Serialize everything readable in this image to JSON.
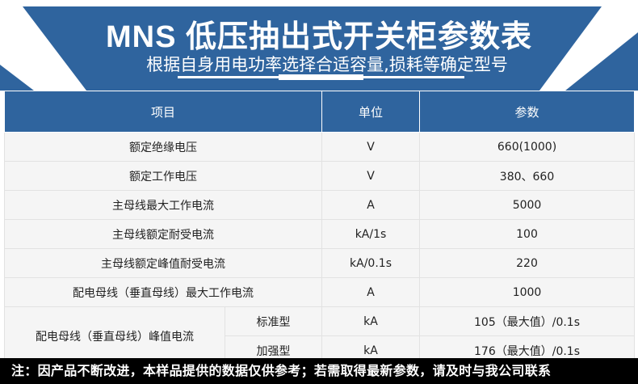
{
  "header": {
    "title": "MNS 低压抽出式开关柜参数表",
    "subtitle": "根据自身用电功率选择合适容量,损耗等确定型号",
    "accent": "#2f649e"
  },
  "table": {
    "columns": [
      "项目",
      "单位",
      "参数"
    ],
    "rows": [
      {
        "item": "额定绝缘电压",
        "unit": "V",
        "value": "660(1000)"
      },
      {
        "item": "额定工作电压",
        "unit": "V",
        "value": "380、660"
      },
      {
        "item": "主母线最大工作电流",
        "unit": "A",
        "value": "5000"
      },
      {
        "item": "主母线额定耐受电流",
        "unit": "kA/1s",
        "value": "100"
      },
      {
        "item": "主母线额定峰值耐受电流",
        "unit": "kA/0.1s",
        "value": "220"
      },
      {
        "item": "配电母线（垂直母线）最大工作电流",
        "unit": "A",
        "value": "1000"
      }
    ],
    "merged": {
      "item": "配电母线（垂直母线）峰值电流",
      "sub": [
        {
          "type": "标准型",
          "unit": "kA",
          "value": "105（最大值）/0.1s"
        },
        {
          "type": "加强型",
          "unit": "kA",
          "value": "176（最大值）/0.1s"
        }
      ]
    }
  },
  "footer": {
    "note": "注：因产品不断改进，本样品提供的数据仅供参考；若需取得最新参数，请及时与我公司联系"
  }
}
